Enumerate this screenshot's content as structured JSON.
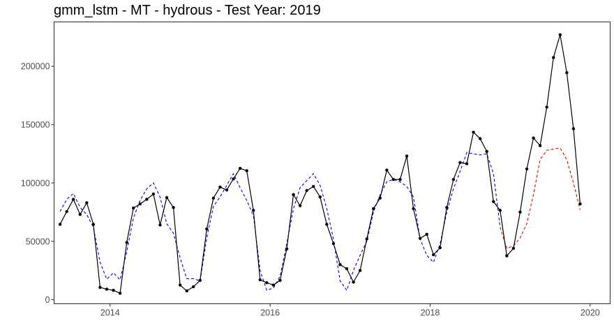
{
  "chart_data": {
    "type": "line",
    "title": "gmm_lstm - MT - hydrous - Test Year: 2019",
    "xlabel": "",
    "ylabel": "",
    "xlim": [
      2013.3,
      2020.25
    ],
    "ylim": [
      -3500,
      238000
    ],
    "x_ticks": [
      2014,
      2016,
      2018,
      2020
    ],
    "x_tick_labels": [
      "2014",
      "2016",
      "2018",
      "2020"
    ],
    "y_ticks": [
      0,
      50000,
      100000,
      150000,
      200000
    ],
    "y_tick_labels": [
      "0",
      "50000",
      "100000",
      "150000",
      "200000"
    ],
    "grid": false,
    "legend": "none",
    "x_start": 2013.375,
    "x_step": 0.08333,
    "series": [
      {
        "style": "solid-with-points",
        "color": "#000000",
        "values": [
          64500,
          75500,
          86000,
          73000,
          83000,
          64500,
          10500,
          9000,
          8000,
          5500,
          49000,
          78500,
          82000,
          86000,
          90500,
          64000,
          87500,
          79000,
          12500,
          7500,
          11000,
          16500,
          60500,
          87000,
          96500,
          94000,
          103500,
          112500,
          110500,
          76500,
          17000,
          14500,
          12500,
          16500,
          43500,
          90000,
          80500,
          93500,
          97000,
          88000,
          64500,
          48000,
          30000,
          26500,
          15000,
          25000,
          52000,
          78000,
          87000,
          111000,
          103000,
          103000,
          123000,
          78000,
          52500,
          56000,
          38500,
          44500,
          79000,
          103000,
          117500,
          116500,
          143500,
          138000,
          127000,
          84000,
          76500,
          37500,
          44000,
          75000,
          112000,
          138500,
          132000,
          165000,
          207500,
          227000,
          194500,
          146500,
          82000
        ]
      },
      {
        "style": "dashed",
        "color": "#0000ee",
        "values": [
          75500,
          86000,
          91000,
          79000,
          73000,
          62000,
          32000,
          17500,
          23000,
          17000,
          41000,
          70000,
          85000,
          95000,
          100000,
          88000,
          65000,
          57000,
          36000,
          18000,
          18000,
          16000,
          53000,
          80000,
          88000,
          98000,
          108000,
          96000,
          85000,
          72000,
          25000,
          8000,
          10000,
          20000,
          48000,
          78000,
          96000,
          102000,
          108000,
          98000,
          78000,
          52000,
          16000,
          8000,
          25000,
          38000,
          50000,
          75000,
          90000,
          101000,
          103000,
          101000,
          97000,
          88000,
          52000,
          38000,
          32000,
          48000,
          75000,
          95000,
          110000,
          126000,
          125000,
          124000,
          125000,
          108000,
          62000
        ]
      },
      {
        "style": "dashed",
        "color": "#ee0000",
        "values": [
          62000,
          44000,
          46000,
          53000,
          65000,
          90000,
          120000,
          128000,
          129000,
          130000,
          120000,
          100000,
          77000
        ]
      }
    ]
  }
}
